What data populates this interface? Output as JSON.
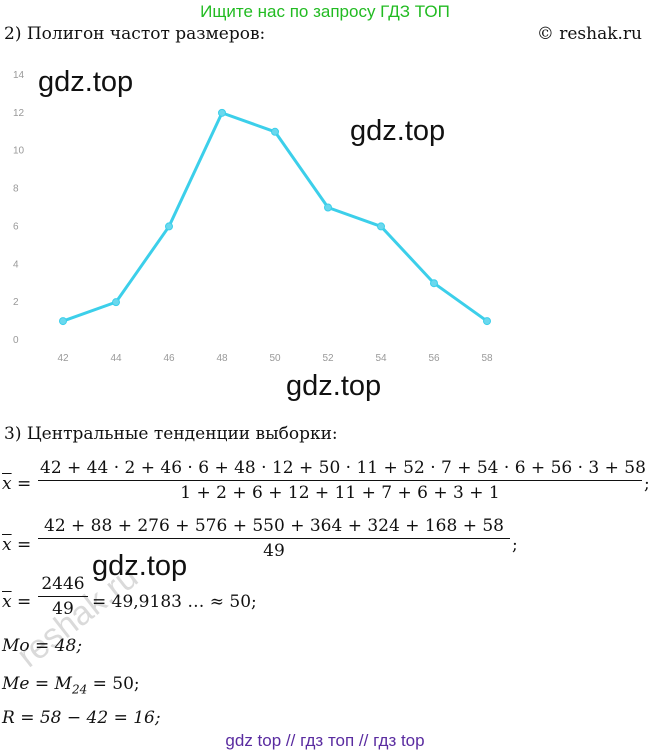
{
  "banner": "Ищите нас по запросу ГДЗ ТОП",
  "site": "© reshak.ru",
  "section2_heading": "2) Полигон частот размеров:",
  "section3_heading": "3) Центральные тенденции выборки:",
  "watermark": "gdz.top",
  "diagonal_watermark": "reshak.ru",
  "footer": "gdz top  //  гдз топ  //  гдз top",
  "chart_data": {
    "type": "line",
    "title": "",
    "xlabel": "",
    "ylabel": "",
    "x": [
      42,
      44,
      46,
      48,
      50,
      52,
      54,
      56,
      58
    ],
    "values": [
      1,
      2,
      6,
      12,
      11,
      7,
      6,
      3,
      1
    ],
    "y_ticks": [
      0,
      2,
      4,
      6,
      8,
      10,
      12,
      14
    ],
    "ylim": [
      0,
      14
    ],
    "color": "#3ccfea",
    "grid": false
  },
  "formulas": {
    "mean1_lhs": "x",
    "eq": "=",
    "mean1_num": "42 + 44 · 2 + 46 · 6 + 48 · 12 + 50 · 11 + 52 · 7 + 54 · 6 + 56 · 3 + 58",
    "mean1_den": "1 + 2 + 6 + 12 + 11 + 7 + 6 + 3 + 1",
    "semicolon": ";",
    "mean2_num": "42 + 88 + 276 + 576 + 550 + 364 + 324 + 168 + 58",
    "mean2_den": "49",
    "mean3_num": "2446",
    "mean3_den": "49",
    "mean3_rest": "= 49,9183 … ≈ 50;",
    "mode": "Mo = 48;",
    "median_lhs": "Me = M",
    "median_sub": "24",
    "median_rhs": " = 50;",
    "range": "R = 58 − 42 = 16;"
  }
}
